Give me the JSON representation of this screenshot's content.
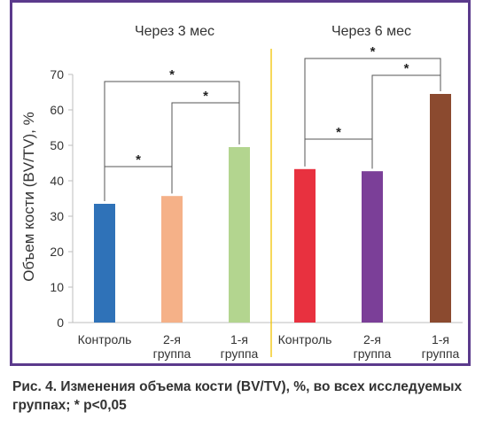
{
  "chart_data": {
    "type": "bar",
    "ylabel": "Объем кости (BV/TV), %",
    "ylim": [
      0,
      70
    ],
    "yticks": [
      0,
      10,
      20,
      30,
      40,
      50,
      60,
      70
    ],
    "grid": false,
    "panels": [
      {
        "title": "Через 3 мес",
        "categories": [
          [
            "Контроль"
          ],
          [
            "2-я",
            "группа"
          ],
          [
            "1-я",
            "группа"
          ]
        ],
        "values": [
          33.5,
          35.7,
          49.5
        ],
        "colors": [
          "#2f72b8",
          "#f5b188",
          "#b3d58f"
        ],
        "significance": [
          {
            "from": 0,
            "to": 1,
            "label": "*"
          },
          {
            "from": 1,
            "to": 2,
            "label": "*"
          },
          {
            "from": 0,
            "to": 2,
            "label": "*"
          }
        ]
      },
      {
        "title": "Через 6 мес",
        "categories": [
          [
            "Контроль"
          ],
          [
            "2-я",
            "группа"
          ],
          [
            "1-я",
            "группа"
          ]
        ],
        "values": [
          43.3,
          42.7,
          64.5
        ],
        "colors": [
          "#e8313f",
          "#7b3f98",
          "#8b4a2f"
        ],
        "significance": [
          {
            "from": 0,
            "to": 1,
            "label": "*"
          },
          {
            "from": 1,
            "to": 2,
            "label": "*"
          },
          {
            "from": 0,
            "to": 2,
            "label": "*"
          }
        ]
      }
    ]
  },
  "caption": "Рис. 4. Изменения объема кости (BV/TV), %, во всех исследуемых группах; * p<0,05",
  "colors": {
    "frame": "#5b3a8c",
    "divider": "#f0c400",
    "axis": "#bdbdbd",
    "text": "#333333"
  }
}
